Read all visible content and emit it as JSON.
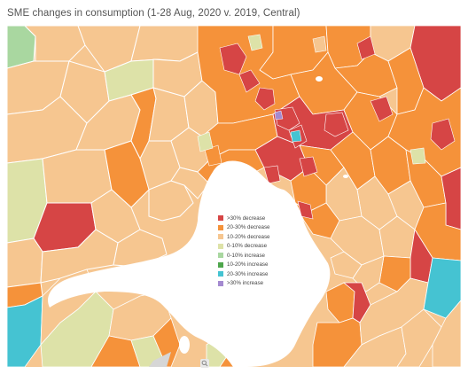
{
  "title": "SME changes in consumption (1-28 Aug, 2020 v. 2019, Central)",
  "colors": {
    "gt30_decrease": "#d64545",
    "d20_30_decrease": "#f5923a",
    "d10_20_decrease": "#f6c690",
    "d0_10_decrease": "#dde2a8",
    "i0_10_increase": "#a9d7a0",
    "i10_20_increase": "#4ea64c",
    "i20_30_increase": "#45c3d2",
    "gt30_increase": "#a48ad0",
    "water": "#ffffff",
    "border": "#ffffff"
  },
  "legend": [
    {
      "label": ">30% decrease",
      "color": "#d64545"
    },
    {
      "label": "20-30% decrease",
      "color": "#f5923a"
    },
    {
      "label": "10-20% decrease",
      "color": "#f6c690"
    },
    {
      "label": "0-10% decrease",
      "color": "#dde2a8"
    },
    {
      "label": "0-10% increase",
      "color": "#a9d7a0"
    },
    {
      "label": "10-20% increase",
      "color": "#4ea64c"
    },
    {
      "label": "20-30% increase",
      "color": "#45c3d2"
    },
    {
      "label": ">30% increase",
      "color": "#a48ad0"
    }
  ],
  "map_icons": {
    "zoom": "magnifier-icon"
  }
}
